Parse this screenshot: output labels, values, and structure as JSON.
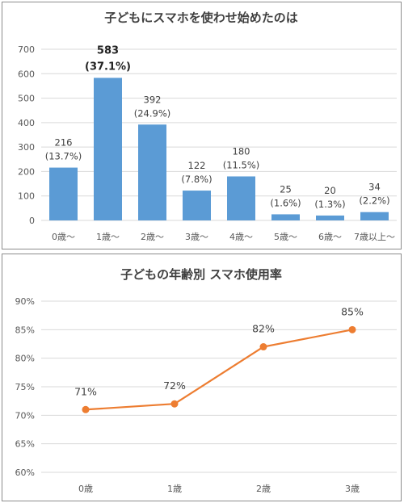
{
  "chart_data": [
    {
      "type": "bar",
      "title": "子どもにスマホを使わせ始めたのは",
      "categories": [
        "0歳～",
        "1歳～",
        "2歳～",
        "3歳～",
        "4歳～",
        "5歳～",
        "6歳～",
        "7歳以上～"
      ],
      "values": [
        216,
        583,
        392,
        122,
        180,
        25,
        20,
        34
      ],
      "percent_labels": [
        "(13.7%)",
        "(37.1%)",
        "(24.9%)",
        "(7.8%)",
        "(11.5%)",
        "(1.6%)",
        "(1.3%)",
        "(2.2%)"
      ],
      "highlight_index": 1,
      "ylim": [
        0,
        700
      ],
      "yticks": [
        "0",
        "100",
        "200",
        "300",
        "400",
        "500",
        "600",
        "700"
      ],
      "grid": true,
      "color": "#5b9bd5"
    },
    {
      "type": "line",
      "title": "子どもの年齢別 スマホ使用率",
      "categories": [
        "0歳",
        "1歳",
        "2歳",
        "3歳"
      ],
      "values": [
        71,
        72,
        82,
        85
      ],
      "value_labels": [
        "71%",
        "72%",
        "82%",
        "85%"
      ],
      "ylim": [
        60,
        90
      ],
      "yticks": [
        "60%",
        "65%",
        "70%",
        "75%",
        "80%",
        "85%",
        "90%"
      ],
      "grid": true,
      "color": "#ed7d31"
    }
  ]
}
